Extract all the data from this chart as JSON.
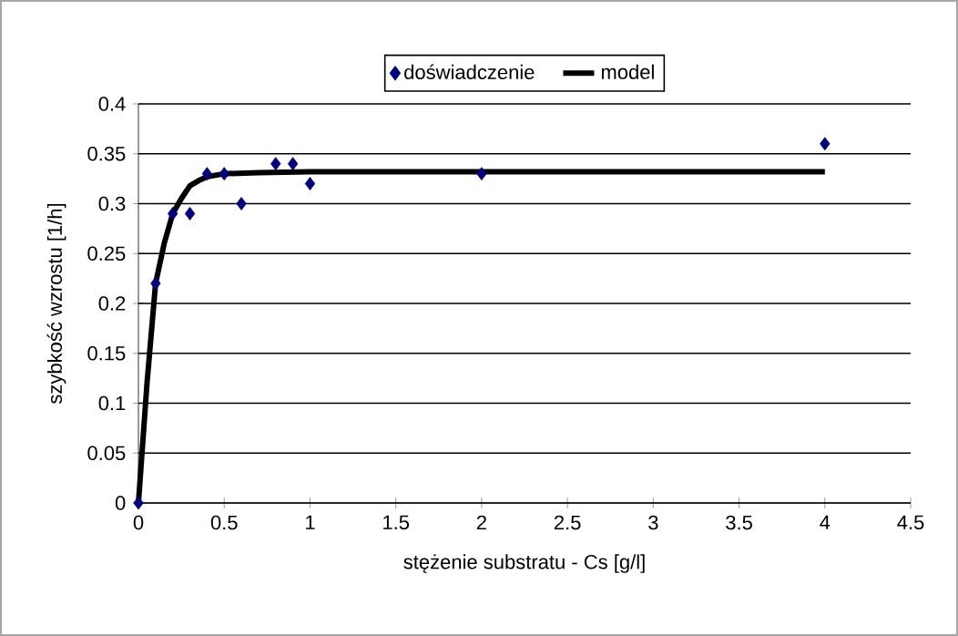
{
  "chart_data": {
    "type": "scatter",
    "xlabel": "stężenie substratu - Cs [g/l]",
    "ylabel": "szybkość wzrostu [1/h]",
    "xlim": [
      0,
      4.5
    ],
    "xticks": [
      0,
      0.5,
      1,
      1.5,
      2,
      2.5,
      3,
      3.5,
      4,
      4.5
    ],
    "ylim": [
      0,
      0.4
    ],
    "yticks": [
      0,
      0.05,
      0.1,
      0.15,
      0.2,
      0.25,
      0.3,
      0.35,
      0.4
    ],
    "grid": "y",
    "legend": "top",
    "series": [
      {
        "name": "doświadczenie",
        "marker": "diamond",
        "color": "#000080",
        "x": [
          0,
          0.1,
          0.2,
          0.3,
          0.4,
          0.5,
          0.6,
          0.8,
          0.9,
          1,
          2,
          4
        ],
        "values": [
          0,
          0.22,
          0.29,
          0.29,
          0.33,
          0.33,
          0.3,
          0.34,
          0.34,
          0.32,
          0.33,
          0.36
        ]
      },
      {
        "name": "model",
        "type": "line",
        "marker": "none",
        "line_style": "solid",
        "color": "#000000",
        "x": [
          0,
          0.05,
          0.1,
          0.15,
          0.2,
          0.25,
          0.3,
          0.35,
          0.4,
          0.5,
          0.7,
          1,
          2,
          4
        ],
        "values": [
          0,
          0.12,
          0.22,
          0.26,
          0.29,
          0.305,
          0.318,
          0.323,
          0.327,
          0.33,
          0.331,
          0.332,
          0.332,
          0.332
        ]
      }
    ]
  }
}
